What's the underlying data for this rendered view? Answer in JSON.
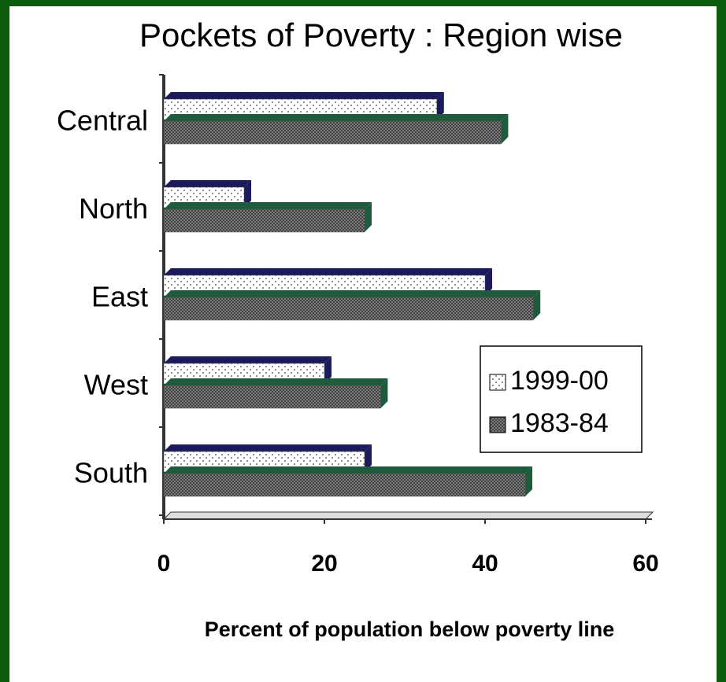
{
  "chart_data": {
    "type": "bar",
    "orientation": "horizontal",
    "title": "Pockets of Poverty : Region wise",
    "xlabel": "Percent of population below poverty line",
    "categories": [
      "Central",
      "North",
      "East",
      "West",
      "South"
    ],
    "series": [
      {
        "name": "1999-00",
        "color": "#ffffff",
        "values": [
          34,
          10,
          40,
          20,
          25
        ]
      },
      {
        "name": "1983-84",
        "color": "#8a8a8a",
        "values": [
          42,
          25,
          46,
          27,
          45
        ]
      }
    ],
    "xlim": [
      0,
      60
    ],
    "xticks": [
      0,
      20,
      40,
      60
    ],
    "legend": "right"
  }
}
